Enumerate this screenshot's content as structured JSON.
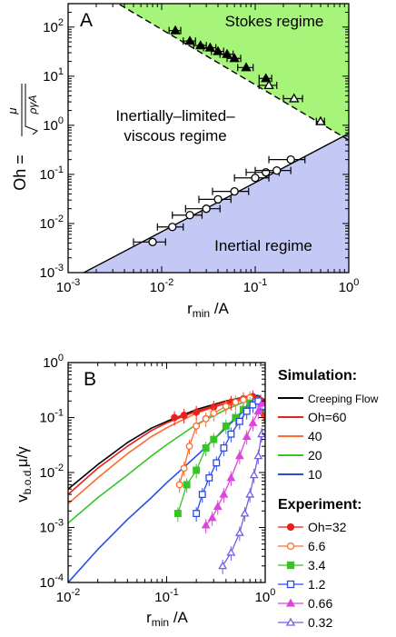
{
  "chart_data": [
    {
      "type": "scatter",
      "panel_label": "A",
      "xlabel": "r_min /A",
      "ylabel": "Oh = μ/√(ργA)",
      "ylabel_parts": {
        "lhs": "Oh =",
        "num": "μ",
        "den": "ργA"
      },
      "x_scale": "log",
      "y_scale": "log",
      "xlim": [
        0.001,
        1
      ],
      "ylim": [
        0.001,
        300
      ],
      "x_ticks": [
        {
          "v": 0.001,
          "b": "10",
          "e": "-3"
        },
        {
          "v": 0.01,
          "b": "10",
          "e": "-2"
        },
        {
          "v": 0.1,
          "b": "10",
          "e": "-1"
        },
        {
          "v": 1,
          "b": "10",
          "e": "0"
        }
      ],
      "y_ticks": [
        {
          "v": 0.001,
          "b": "10",
          "e": "-3"
        },
        {
          "v": 0.01,
          "b": "10",
          "e": "-2"
        },
        {
          "v": 0.1,
          "b": "10",
          "e": "-1"
        },
        {
          "v": 1,
          "b": "10",
          "e": "0"
        },
        {
          "v": 10,
          "b": "10",
          "e": "1"
        },
        {
          "v": 100,
          "b": "10",
          "e": "2"
        }
      ],
      "regions": [
        {
          "name": "Stokes regime",
          "color": "#a6f57a"
        },
        {
          "name": "Inertially-limited-viscous regime",
          "lines": [
            "Inertially–limited–",
            "viscous regime"
          ]
        },
        {
          "name": "Inertial regime",
          "color": "#c4c8f5"
        }
      ],
      "boundaries": [
        {
          "style": "dashed",
          "x": [
            0.001,
            1
          ],
          "y": [
            1200,
            0.5
          ]
        },
        {
          "style": "solid",
          "x": [
            0.001,
            1
          ],
          "y": [
            0.00068,
            0.68
          ]
        }
      ],
      "series": [
        {
          "marker": "filled-triangle",
          "x": [
            0.014,
            0.02,
            0.026,
            0.033,
            0.04,
            0.05,
            0.06,
            0.08,
            0.13
          ],
          "y": [
            85,
            52,
            42,
            38,
            32,
            28,
            23,
            15,
            9
          ],
          "xerr": [
            0.002,
            0.003,
            0.004,
            0.005,
            0.006,
            0.008,
            0.01,
            0.015,
            0.02
          ]
        },
        {
          "marker": "open-triangle",
          "x": [
            0.14,
            0.26,
            0.5
          ],
          "y": [
            6.5,
            3.5,
            1.2
          ],
          "xerr": [
            0.03,
            0.06,
            0.05
          ]
        },
        {
          "marker": "open-circle",
          "x": [
            0.008,
            0.013,
            0.02,
            0.03,
            0.04,
            0.06,
            0.1,
            0.13,
            0.17,
            0.24
          ],
          "y": [
            0.0042,
            0.0085,
            0.0148,
            0.02,
            0.031,
            0.045,
            0.085,
            0.11,
            0.12,
            0.2
          ],
          "xerr": [
            0.003,
            0.004,
            0.007,
            0.012,
            0.015,
            0.025,
            0.04,
            0.05,
            0.07,
            0.1
          ]
        }
      ]
    },
    {
      "type": "line",
      "panel_label": "B",
      "xlabel": "r_min /A",
      "ylabel": "v_b.o.d. μ/γ",
      "x_scale": "log",
      "y_scale": "log",
      "xlim": [
        0.01,
        1
      ],
      "ylim": [
        0.0001,
        1
      ],
      "x_ticks": [
        {
          "v": 0.01,
          "b": "10",
          "e": "-2"
        },
        {
          "v": 0.1,
          "b": "10",
          "e": "-1"
        },
        {
          "v": 1,
          "b": "10",
          "e": "0"
        }
      ],
      "y_ticks": [
        {
          "v": 0.0001,
          "b": "10",
          "e": "-4"
        },
        {
          "v": 0.001,
          "b": "10",
          "e": "-3"
        },
        {
          "v": 0.01,
          "b": "10",
          "e": "-2"
        },
        {
          "v": 0.1,
          "b": "10",
          "e": "-1"
        },
        {
          "v": 1,
          "b": "10",
          "e": "0"
        }
      ],
      "legend_placement": "right",
      "legend_groups": [
        {
          "title": "Simulation:",
          "entries": [
            {
              "label": "Creeping Flow",
              "color": "#000000",
              "marker": "none"
            },
            {
              "label": "Oh=60",
              "color": "#e8201e",
              "marker": "none"
            },
            {
              "label": "40",
              "color": "#ff6a2a",
              "marker": "none"
            },
            {
              "label": "20",
              "color": "#36c426",
              "marker": "none"
            },
            {
              "label": "10",
              "color": "#2a4be8",
              "marker": "none"
            }
          ]
        },
        {
          "title": "Experiment:",
          "entries": [
            {
              "label": "Oh=32",
              "color": "#e8201e",
              "marker": "filled-circle"
            },
            {
              "label": "6.6",
              "color": "#ff6a2a",
              "marker": "open-circle"
            },
            {
              "label": "3.4",
              "color": "#36c426",
              "marker": "filled-square"
            },
            {
              "label": "1.2",
              "color": "#2a4be8",
              "marker": "open-square"
            },
            {
              "label": "0.66",
              "color": "#dd44dd",
              "marker": "filled-triangle"
            },
            {
              "label": "0.32",
              "color": "#7a5ae8",
              "marker": "open-triangle"
            }
          ]
        }
      ],
      "simulation_series": [
        {
          "name": "Creeping Flow",
          "color": "#000000",
          "x": [
            0.01,
            0.02,
            0.04,
            0.07,
            0.1,
            0.2,
            0.4,
            0.6,
            0.75,
            0.85,
            0.95,
            1.0
          ],
          "y": [
            0.005,
            0.014,
            0.035,
            0.064,
            0.085,
            0.14,
            0.2,
            0.235,
            0.25,
            0.25,
            0.22,
            0.2
          ]
        },
        {
          "name": "Oh=60",
          "color": "#e8201e",
          "x": [
            0.01,
            0.02,
            0.04,
            0.07,
            0.1,
            0.2,
            0.4,
            0.6,
            0.75,
            0.9,
            1.0
          ],
          "y": [
            0.004,
            0.012,
            0.03,
            0.058,
            0.08,
            0.13,
            0.195,
            0.23,
            0.245,
            0.23,
            0.19
          ]
        },
        {
          "name": "40",
          "color": "#ff6a2a",
          "x": [
            0.01,
            0.02,
            0.04,
            0.07,
            0.1,
            0.2,
            0.4,
            0.6,
            0.75,
            0.9,
            1.0
          ],
          "y": [
            0.0027,
            0.008,
            0.022,
            0.045,
            0.065,
            0.12,
            0.185,
            0.225,
            0.24,
            0.23,
            0.19
          ]
        },
        {
          "name": "20",
          "color": "#36c426",
          "x": [
            0.01,
            0.02,
            0.04,
            0.07,
            0.1,
            0.2,
            0.4,
            0.6,
            0.75,
            0.9,
            1.0
          ],
          "y": [
            0.0012,
            0.0035,
            0.009,
            0.02,
            0.032,
            0.075,
            0.14,
            0.19,
            0.22,
            0.22,
            0.19
          ]
        },
        {
          "name": "10",
          "color": "#2a4be8",
          "x": [
            0.01,
            0.02,
            0.04,
            0.07,
            0.1,
            0.2,
            0.4,
            0.6,
            0.75,
            0.9,
            1.0
          ],
          "y": [
            0.0001,
            0.0004,
            0.0014,
            0.0035,
            0.0065,
            0.02,
            0.065,
            0.13,
            0.17,
            0.19,
            0.18
          ]
        }
      ],
      "experiment_series": [
        {
          "name": "Oh=32",
          "color": "#e8201e",
          "marker": "filled-circle",
          "x": [
            0.12,
            0.15,
            0.2,
            0.3,
            0.45,
            0.6,
            0.75,
            0.9,
            0.98
          ],
          "y": [
            0.1,
            0.11,
            0.125,
            0.155,
            0.19,
            0.22,
            0.24,
            0.2,
            0.11
          ]
        },
        {
          "name": "6.6",
          "color": "#ff6a2a",
          "marker": "open-circle",
          "x": [
            0.135,
            0.15,
            0.17,
            0.2,
            0.25,
            0.3,
            0.4,
            0.5,
            0.6,
            0.7,
            0.85,
            0.95
          ],
          "y": [
            0.006,
            0.012,
            0.03,
            0.07,
            0.095,
            0.12,
            0.16,
            0.19,
            0.21,
            0.23,
            0.2,
            0.14
          ]
        },
        {
          "name": "3.4",
          "color": "#36c426",
          "marker": "filled-square",
          "x": [
            0.13,
            0.16,
            0.2,
            0.25,
            0.3,
            0.4,
            0.5,
            0.6,
            0.7,
            0.85,
            0.95
          ],
          "y": [
            0.0018,
            0.006,
            0.011,
            0.028,
            0.04,
            0.07,
            0.1,
            0.14,
            0.18,
            0.2,
            0.15
          ]
        },
        {
          "name": "1.2",
          "color": "#2a4be8",
          "marker": "open-square",
          "x": [
            0.2,
            0.23,
            0.27,
            0.32,
            0.38,
            0.45,
            0.55,
            0.65,
            0.75,
            0.85,
            0.95
          ],
          "y": [
            0.0018,
            0.004,
            0.008,
            0.015,
            0.028,
            0.05,
            0.085,
            0.13,
            0.17,
            0.2,
            0.16
          ]
        },
        {
          "name": "0.66",
          "color": "#dd44dd",
          "marker": "filled-triangle",
          "x": [
            0.25,
            0.29,
            0.33,
            0.38,
            0.45,
            0.55,
            0.65,
            0.75,
            0.85,
            0.92
          ],
          "y": [
            0.0011,
            0.0015,
            0.0024,
            0.004,
            0.008,
            0.02,
            0.045,
            0.08,
            0.13,
            0.18
          ]
        },
        {
          "name": "0.32",
          "color": "#7a5ae8",
          "marker": "open-triangle",
          "x": [
            0.37,
            0.45,
            0.55,
            0.62,
            0.7,
            0.77,
            0.85,
            0.92
          ],
          "y": [
            0.0002,
            0.00035,
            0.0008,
            0.0018,
            0.004,
            0.009,
            0.02,
            0.05
          ]
        }
      ]
    }
  ]
}
